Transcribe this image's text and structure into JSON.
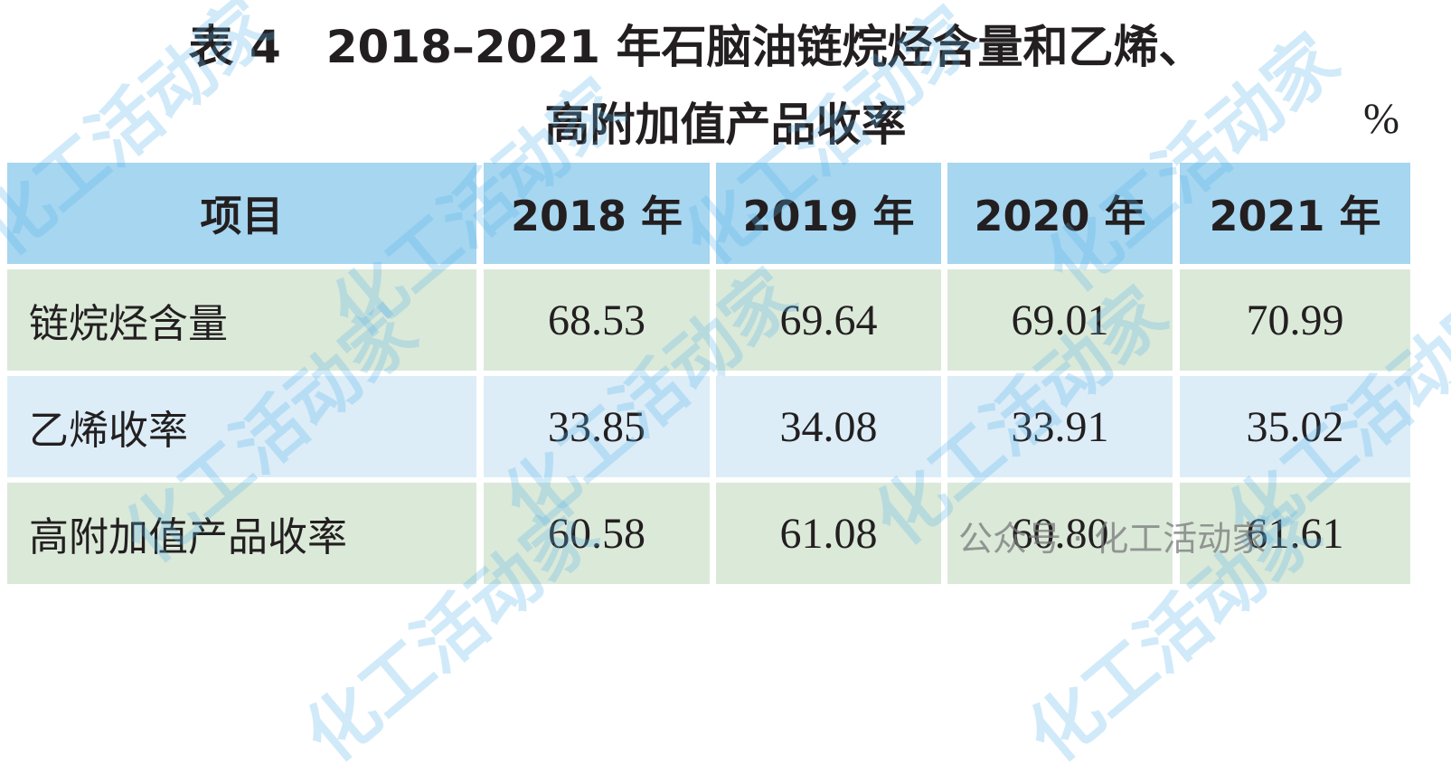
{
  "title": {
    "line1": "表 4　2018–2021 年石脑油链烷烃含量和乙烯、",
    "line2": "高附加值产品收率",
    "unit": "%"
  },
  "table": {
    "header": [
      "项目",
      "2018 年",
      "2019 年",
      "2020 年",
      "2021 年"
    ],
    "rows": [
      [
        "链烷烃含量",
        "68.53",
        "69.64",
        "69.01",
        "70.99"
      ],
      [
        "乙烯收率",
        "33.85",
        "34.08",
        "33.91",
        "35.02"
      ],
      [
        "高附加值产品收率",
        "60.58",
        "61.08",
        "60.80",
        "61.61"
      ]
    ]
  },
  "watermark": {
    "text": "化工活动家",
    "source": "公众号 · 化工活动家"
  }
}
